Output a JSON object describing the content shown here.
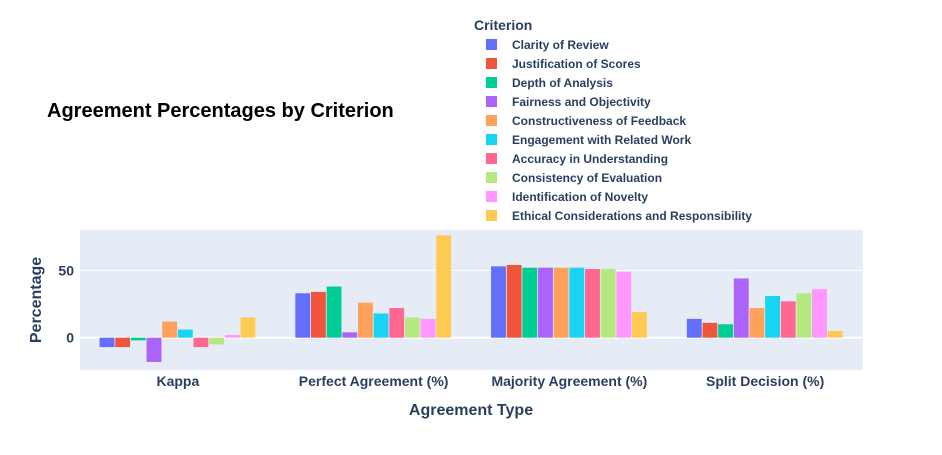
{
  "chart_data": {
    "type": "bar",
    "title": "Agreement Percentages by Criterion",
    "xlabel": "Agreement Type",
    "ylabel": "Percentage",
    "categories": [
      "Kappa",
      "Perfect Agreement (%)",
      "Majority Agreement (%)",
      "Split Decision (%)"
    ],
    "ylim": [
      -24,
      80
    ],
    "yticks": [
      0,
      50
    ],
    "grid": true,
    "legend_title": "Criterion",
    "legend_position": "top-right",
    "series": [
      {
        "name": "Clarity of Review",
        "color": "#636efa",
        "values": [
          -7,
          33,
          53,
          14
        ]
      },
      {
        "name": "Justification of Scores",
        "color": "#ef553b",
        "values": [
          -7,
          34,
          54,
          11
        ]
      },
      {
        "name": "Depth of Analysis",
        "color": "#00cc96",
        "values": [
          -2,
          38,
          52,
          10
        ]
      },
      {
        "name": "Fairness and Objectivity",
        "color": "#ab63fa",
        "values": [
          -18,
          4,
          52,
          44
        ]
      },
      {
        "name": "Constructiveness of Feedback",
        "color": "#ffa15a",
        "values": [
          12,
          26,
          52,
          22
        ]
      },
      {
        "name": "Engagement with Related Work",
        "color": "#19d3f3",
        "values": [
          6,
          18,
          52,
          31
        ]
      },
      {
        "name": "Accuracy in Understanding",
        "color": "#ff6692",
        "values": [
          -7,
          22,
          51,
          27
        ]
      },
      {
        "name": "Consistency of Evaluation",
        "color": "#b6e880",
        "values": [
          -5,
          15,
          51,
          33
        ]
      },
      {
        "name": "Identification of Novelty",
        "color": "#ff97ff",
        "values": [
          2,
          14,
          49,
          36
        ]
      },
      {
        "name": "Ethical Considerations and Responsibility",
        "color": "#fecb52",
        "values": [
          15,
          76,
          19,
          5
        ]
      }
    ]
  }
}
